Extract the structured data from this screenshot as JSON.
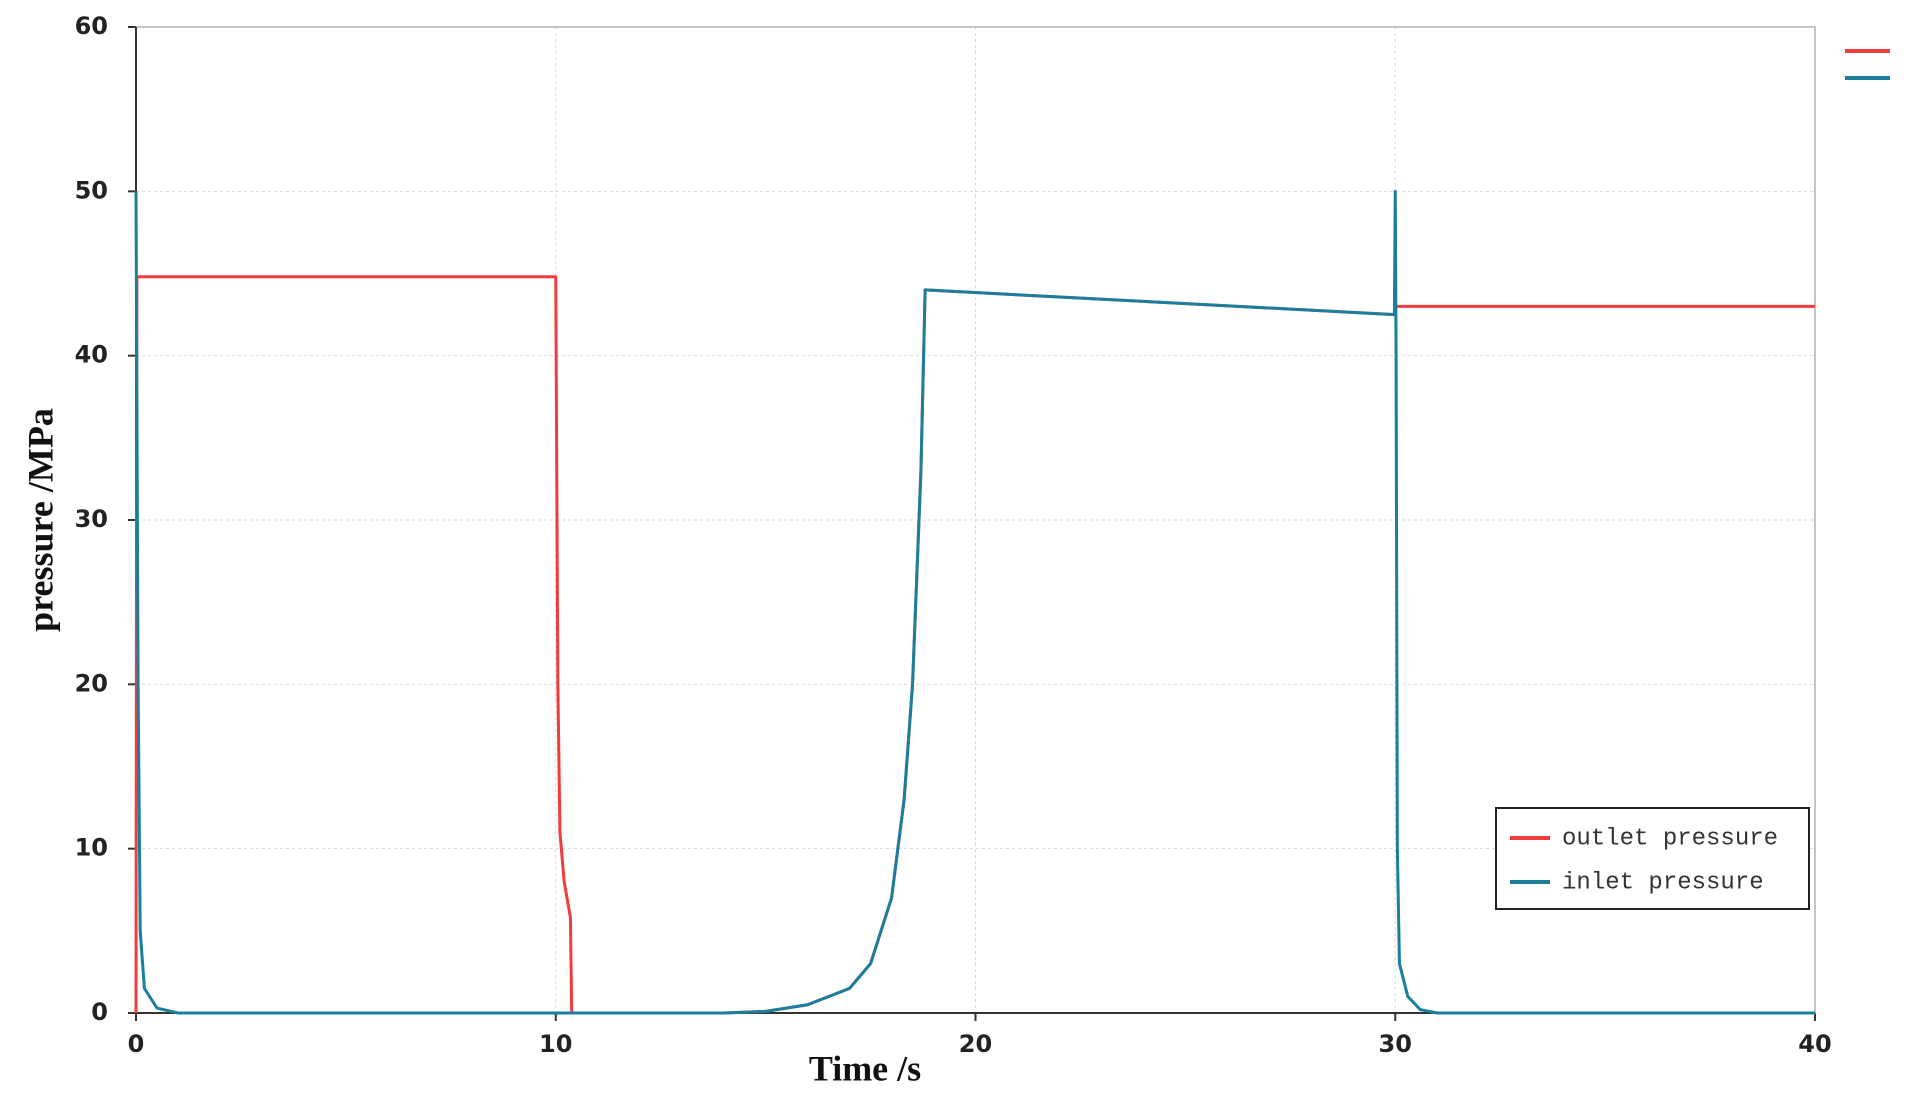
{
  "chart_data": {
    "type": "line",
    "xlabel": "Time /s",
    "ylabel": "pressure /MPa",
    "xlim": [
      0,
      40
    ],
    "xticks": [
      0,
      10,
      20,
      30,
      40
    ],
    "ylim": [
      0,
      60
    ],
    "yticks": [
      0,
      10,
      20,
      30,
      40,
      50,
      60
    ],
    "grid": true,
    "legend": "lower right",
    "series": [
      {
        "name": "outlet pressure",
        "color": "#f03c3c",
        "x": [
          0,
          0.02,
          10,
          10.05,
          10.1,
          10.2,
          10.35,
          10.38,
          14,
          15,
          16,
          17,
          17.5,
          18,
          18.3,
          18.5,
          18.7,
          18.8,
          30,
          30.02,
          40
        ],
        "values": [
          0,
          44.8,
          44.8,
          20,
          11,
          8,
          5.8,
          0,
          0,
          0.1,
          0.5,
          1.5,
          3,
          7,
          13,
          20,
          33,
          44,
          42.5,
          43,
          43
        ]
      },
      {
        "name": "inlet pressure",
        "color": "#1a7f9c",
        "x": [
          0,
          0.05,
          0.1,
          0.2,
          0.5,
          1,
          14,
          15,
          16,
          17,
          17.5,
          18,
          18.3,
          18.5,
          18.7,
          18.8,
          29.98,
          30,
          30.02,
          30.05,
          30.1,
          30.3,
          30.6,
          31,
          40
        ],
        "values": [
          50,
          20,
          5,
          1.5,
          0.3,
          0,
          0,
          0.1,
          0.5,
          1.5,
          3,
          7,
          13,
          20,
          33,
          44,
          42.5,
          50,
          40,
          10,
          3,
          1,
          0.2,
          0,
          0
        ]
      }
    ]
  }
}
